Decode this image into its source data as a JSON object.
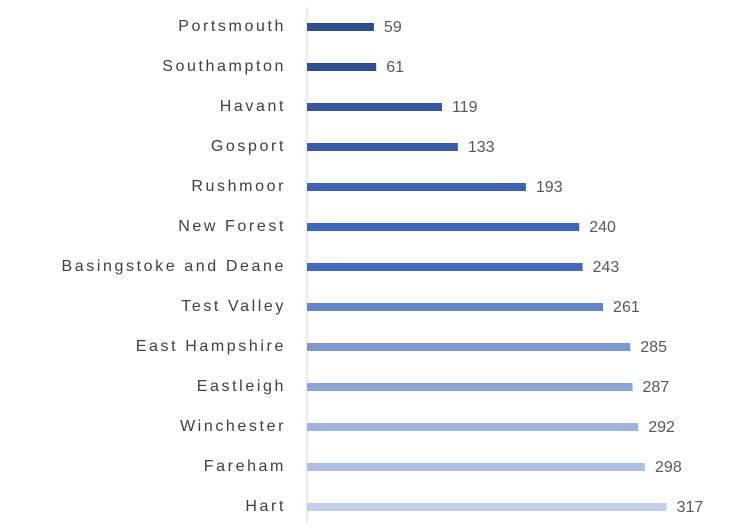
{
  "chart_data": {
    "type": "barh",
    "categories": [
      "Portsmouth",
      "Southampton",
      "Havant",
      "Gosport",
      "Rushmoor",
      "New Forest",
      "Basingstoke and Deane",
      "Test Valley",
      "East Hampshire",
      "Eastleigh",
      "Winchester",
      "Fareham",
      "Hart"
    ],
    "values": [
      59,
      61,
      119,
      133,
      193,
      240,
      243,
      261,
      285,
      287,
      292,
      298,
      317
    ],
    "colors": [
      "#2e4d8a",
      "#2f4f8e",
      "#3557a0",
      "#3a5ca6",
      "#3f63b0",
      "#4068b8",
      "#4569ba",
      "#6484c8",
      "#7e97d0",
      "#8ea3d6",
      "#a1b3dc",
      "#b0c0e3",
      "#c4d0ea"
    ],
    "xlim": [
      0,
      350
    ]
  }
}
